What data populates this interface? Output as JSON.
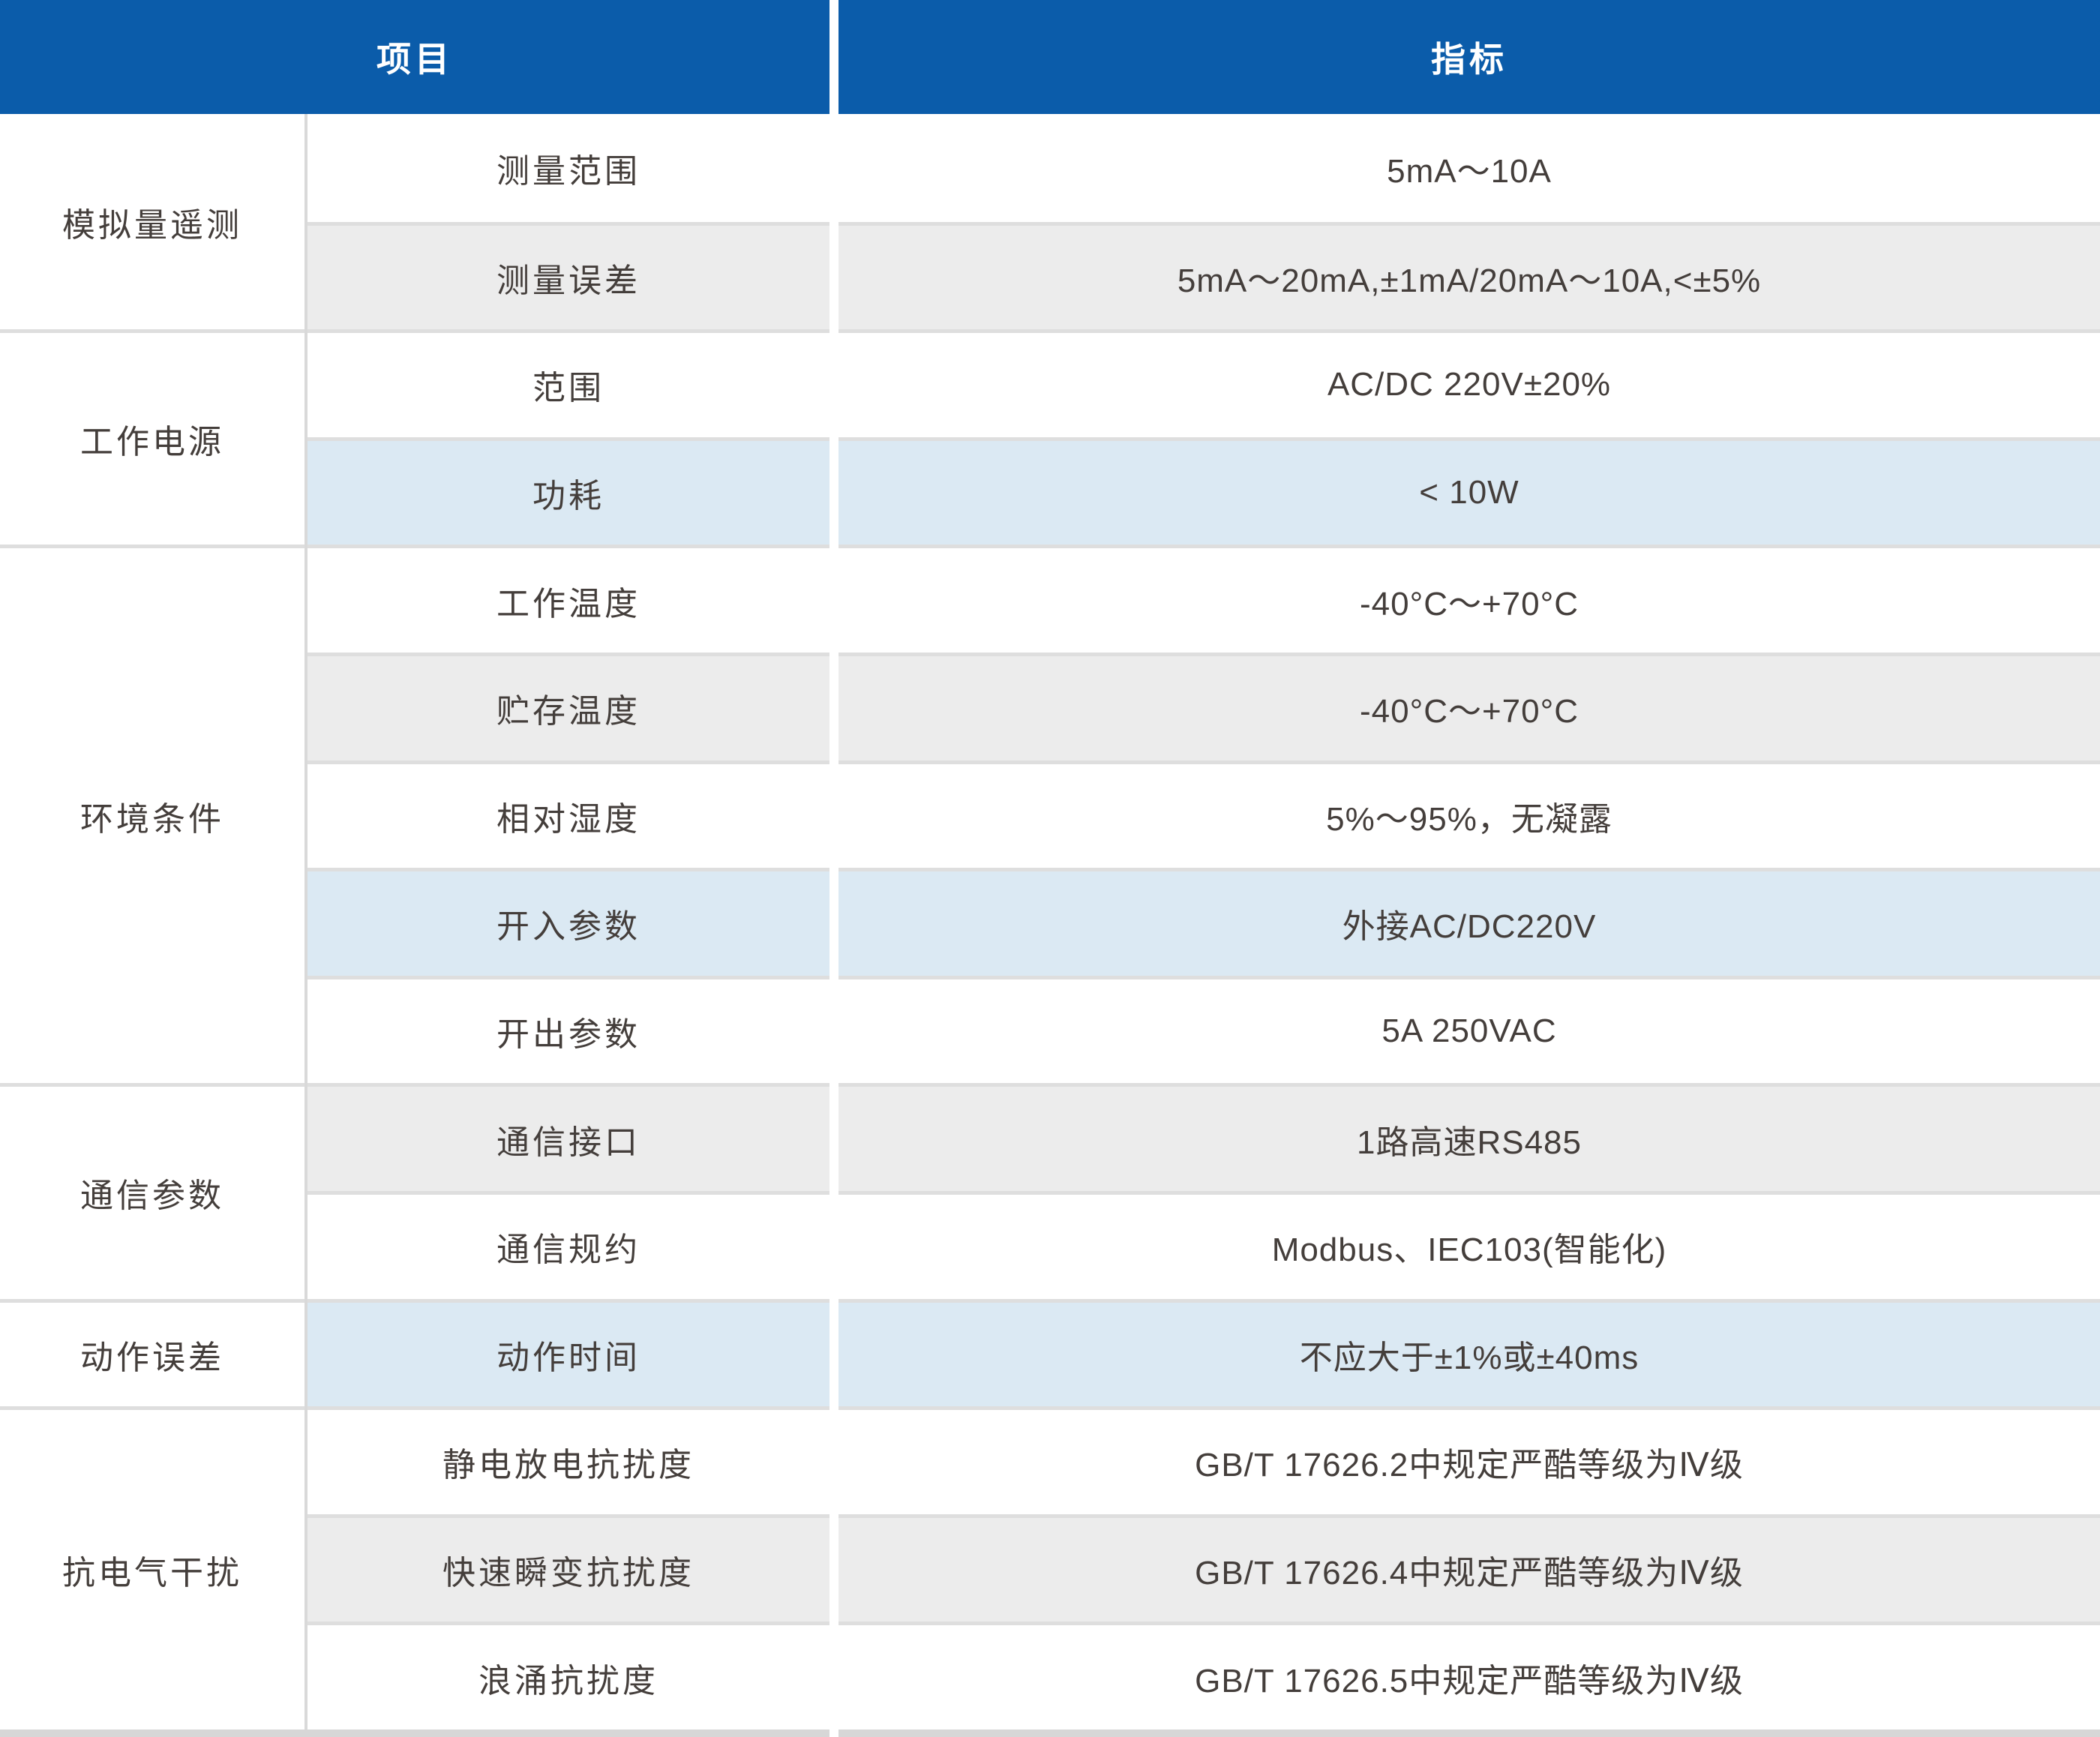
{
  "table": {
    "header": {
      "item_column": "项目",
      "indicator_column": "指标"
    },
    "groups": [
      {
        "label": "模拟量遥测",
        "rowspan": 2
      },
      {
        "label": "工作电源",
        "rowspan": 2
      },
      {
        "label": "环境条件",
        "rowspan": 5
      },
      {
        "label": "通信参数",
        "rowspan": 2
      },
      {
        "label": "动作误差",
        "rowspan": 1
      },
      {
        "label": "抗电气干扰",
        "rowspan": 3
      }
    ],
    "rows": [
      {
        "item": "测量范围",
        "value": "5mA～10A",
        "bg": "white"
      },
      {
        "item": "测量误差",
        "value": "5mA～20mA,±1mA/20mA～10A,<±5%",
        "bg": "gray"
      },
      {
        "item": "范围",
        "value": "AC/DC 220V±20%",
        "bg": "white"
      },
      {
        "item": "功耗",
        "value": "< 10W",
        "bg": "blue"
      },
      {
        "item": "工作温度",
        "value": "-40°C～+70°C",
        "bg": "white"
      },
      {
        "item": "贮存温度",
        "value": "-40°C～+70°C",
        "bg": "gray"
      },
      {
        "item": "相对湿度",
        "value": "5%～95%，无凝露",
        "bg": "white"
      },
      {
        "item": "开入参数",
        "value": "外接AC/DC220V",
        "bg": "blue"
      },
      {
        "item": "开出参数",
        "value": "5A 250VAC",
        "bg": "white"
      },
      {
        "item": "通信接口",
        "value": "1路高速RS485",
        "bg": "gray"
      },
      {
        "item": "通信规约",
        "value": "Modbus、IEC103(智能化)",
        "bg": "white"
      },
      {
        "item": "动作时间",
        "value": "不应大于±1%或±40ms",
        "bg": "blue"
      },
      {
        "item": "静电放电抗扰度",
        "value": "GB/T 17626.2中规定严酷等级为Ⅳ级",
        "bg": "white"
      },
      {
        "item": "快速瞬变抗扰度",
        "value": "GB/T 17626.4中规定严酷等级为Ⅳ级",
        "bg": "gray"
      },
      {
        "item": "浪涌抗扰度",
        "value": "GB/T 17626.5中规定严酷等级为Ⅳ级",
        "bg": "white"
      }
    ],
    "colors": {
      "header_background": "#0b5caa",
      "header_text": "#ffffff",
      "row_gray": "#ececec",
      "row_light_blue": "#dbe9f3",
      "separator_line": "#dedede",
      "column_divider": "#d9d9d9",
      "bottom_border": "#d7d7d7",
      "body_text": "#443e3b"
    }
  }
}
